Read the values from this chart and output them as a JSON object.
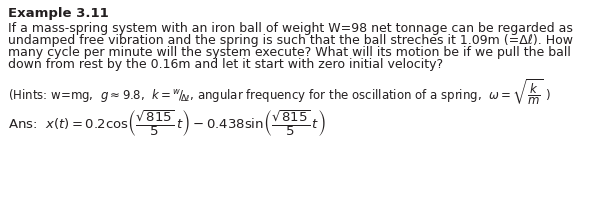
{
  "title": "Example 3.11",
  "line1": "If a mass-spring system with an iron ball of weight W=98 net tonnage can be regarded as",
  "line2": "undamped free vibration and the spring is such that the ball streches it 1.09m (=Δℓ). How",
  "line3": "many cycle per minute will the system execute? What will its motion be if we pull the ball",
  "line4": "down from rest by the 0.16m and let it start with zero initial velocity?",
  "hints_plain": "(Hints: w=mg, ",
  "hints_math1": "g≈9.8",
  "hints_mid": ", ",
  "hints_k": "k = w/Δℓ",
  "hints_end": ", angular frequency for the oscillation of a spring, ω = √(k/m) )",
  "ans_prefix": "Ans: ",
  "bg_color": "#ffffff",
  "text_color": "#231f20",
  "body_fontsize": 9.0,
  "title_fontsize": 9.5,
  "hints_fontsize": 8.5,
  "ans_fontsize": 9.5,
  "fig_width": 5.9,
  "fig_height": 2.08,
  "dpi": 100
}
